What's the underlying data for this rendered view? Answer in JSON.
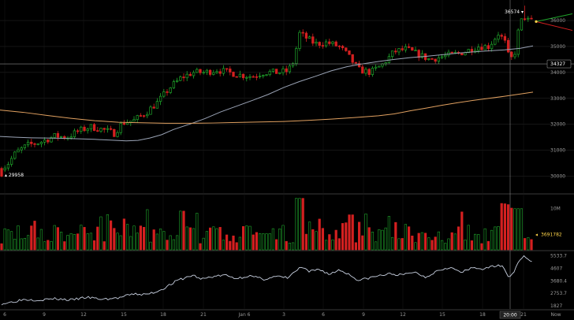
{
  "chart_data": {
    "type": "candlestick",
    "price_panel": {
      "y_ticks": [
        30000,
        31000,
        32000,
        33000,
        34000,
        35000,
        36000
      ],
      "ylim": [
        29500,
        36700
      ],
      "current_price_label": "34327",
      "current_price": 34327,
      "high_label": "36574",
      "high_value": 36574,
      "low_label": "29958",
      "low_value": 29958,
      "moving_averages": [
        {
          "color": "#9aa3b5",
          "points": [
            [
              0,
              31530
            ],
            [
              20,
              31500
            ],
            [
              40,
              31480
            ],
            [
              60,
              31470
            ],
            [
              80,
              31460
            ],
            [
              100,
              31440
            ],
            [
              120,
              31420
            ],
            [
              140,
              31390
            ],
            [
              160,
              31360
            ],
            [
              175,
              31380
            ],
            [
              190,
              31470
            ],
            [
              205,
              31600
            ],
            [
              220,
              31800
            ],
            [
              240,
              32000
            ],
            [
              260,
              32220
            ],
            [
              280,
              32480
            ],
            [
              300,
              32700
            ],
            [
              320,
              32920
            ],
            [
              340,
              33150
            ],
            [
              360,
              33420
            ],
            [
              380,
              33650
            ],
            [
              400,
              33850
            ],
            [
              420,
              34060
            ],
            [
              440,
              34220
            ],
            [
              460,
              34330
            ],
            [
              480,
              34420
            ],
            [
              500,
              34500
            ],
            [
              520,
              34570
            ],
            [
              540,
              34620
            ],
            [
              560,
              34680
            ],
            [
              580,
              34740
            ],
            [
              600,
              34790
            ],
            [
              620,
              34830
            ],
            [
              640,
              34870
            ],
            [
              660,
              34930
            ],
            [
              676,
              35020
            ]
          ]
        },
        {
          "color": "#e0a060",
          "points": [
            [
              0,
              32550
            ],
            [
              30,
              32460
            ],
            [
              60,
              32340
            ],
            [
              90,
              32230
            ],
            [
              120,
              32140
            ],
            [
              150,
              32080
            ],
            [
              180,
              32060
            ],
            [
              210,
              32040
            ],
            [
              240,
              32040
            ],
            [
              270,
              32050
            ],
            [
              300,
              32070
            ],
            [
              330,
              32090
            ],
            [
              360,
              32110
            ],
            [
              390,
              32150
            ],
            [
              420,
              32200
            ],
            [
              450,
              32260
            ],
            [
              480,
              32330
            ],
            [
              500,
              32400
            ],
            [
              520,
              32520
            ],
            [
              540,
              32620
            ],
            [
              560,
              32730
            ],
            [
              580,
              32830
            ],
            [
              600,
              32920
            ],
            [
              620,
              33000
            ],
            [
              640,
              33080
            ],
            [
              660,
              33170
            ],
            [
              676,
              33240
            ]
          ]
        }
      ],
      "projection": {
        "start": [
          680,
          35960
        ],
        "up_end": [
          726,
          36260
        ],
        "down_end": [
          726,
          35620
        ]
      }
    },
    "volume_panel": {
      "y_tick_label": "10M",
      "y_tick_value": 10000000,
      "current_label": "3691782",
      "current_value": 3691782,
      "ymax": 13000000
    },
    "indicator_panel": {
      "y_ticks": [
        "5533.7",
        "4607",
        "3680.4",
        "2753.7",
        "1827"
      ],
      "y_values": [
        5533.7,
        4607,
        3680.4,
        2753.7,
        1827
      ],
      "ylim": [
        1700,
        5750
      ]
    },
    "x_ticks": [
      {
        "label": "6",
        "x": 6
      },
      {
        "label": "9",
        "x": 56
      },
      {
        "label": "12",
        "x": 106
      },
      {
        "label": "15",
        "x": 157
      },
      {
        "label": "18",
        "x": 207
      },
      {
        "label": "21",
        "x": 258
      },
      {
        "label": "Jan 6",
        "x": 310
      },
      {
        "label": "3",
        "x": 360
      },
      {
        "label": "6",
        "x": 410
      },
      {
        "label": "9",
        "x": 461
      },
      {
        "label": "12",
        "x": 511
      },
      {
        "label": "15",
        "x": 561
      },
      {
        "label": "18",
        "x": 612
      },
      {
        "label": "21",
        "x": 664
      }
    ],
    "crosshair": {
      "x_label": "20:00",
      "x": 647
    },
    "now_label": "Now",
    "colors": {
      "up": "#1fa52b",
      "down": "#d42020",
      "price_line": "#ffffff",
      "grid": "#2a2a2a"
    }
  }
}
